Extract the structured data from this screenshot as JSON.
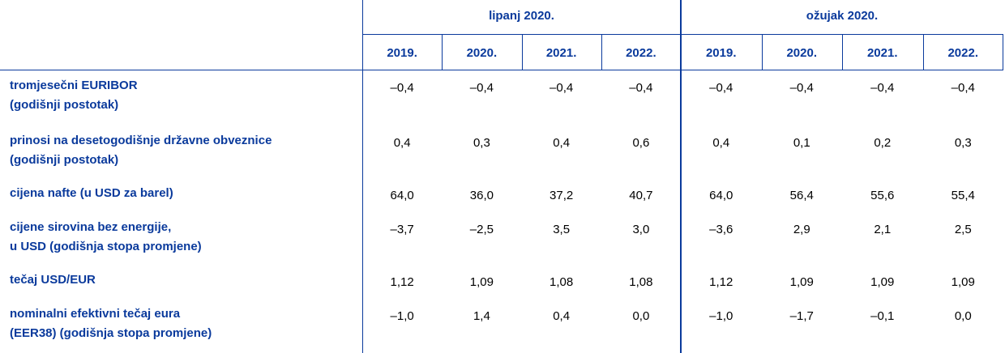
{
  "table": {
    "groups": [
      "lipanj 2020.",
      "ožujak 2020."
    ],
    "years": [
      [
        "2019.",
        "2020.",
        "2021.",
        "2022."
      ],
      [
        "2019.",
        "2020.",
        "2021.",
        "2022."
      ]
    ],
    "rows": [
      {
        "label": [
          "tromjesečni EURIBOR",
          "(godišnji postotak)"
        ],
        "values": [
          "–0,4",
          "–0,4",
          "–0,4",
          "–0,4",
          "–0,4",
          "–0,4",
          "–0,4",
          "–0,4"
        ]
      },
      {
        "label": [
          "prinosi na desetogodišnje državne obveznice",
          "(godišnji postotak)"
        ],
        "values": [
          "0,4",
          "0,3",
          "0,4",
          "0,6",
          "0,4",
          "0,1",
          "0,2",
          "0,3"
        ]
      },
      {
        "label": [
          "cijena nafte (u USD za barel)"
        ],
        "values": [
          "64,0",
          "36,0",
          "37,2",
          "40,7",
          "64,0",
          "56,4",
          "55,6",
          "55,4"
        ]
      },
      {
        "label": [
          "cijene sirovina bez energije,",
          "u USD (godišnja stopa promjene)"
        ],
        "values": [
          "–3,7",
          "–2,5",
          "3,5",
          "3,0",
          "–3,6",
          "2,9",
          "2,1",
          "2,5"
        ]
      },
      {
        "label": [
          "tečaj USD/EUR"
        ],
        "values": [
          "1,12",
          "1,09",
          "1,08",
          "1,08",
          "1,12",
          "1,09",
          "1,09",
          "1,09"
        ]
      },
      {
        "label": [
          "nominalni efektivni tečaj eura",
          "(EER38) (godišnja stopa promjene)"
        ],
        "values": [
          "–1,0",
          "1,4",
          "0,4",
          "0,0",
          "–1,0",
          "–1,7",
          "–0,1",
          "0,0"
        ]
      }
    ]
  }
}
